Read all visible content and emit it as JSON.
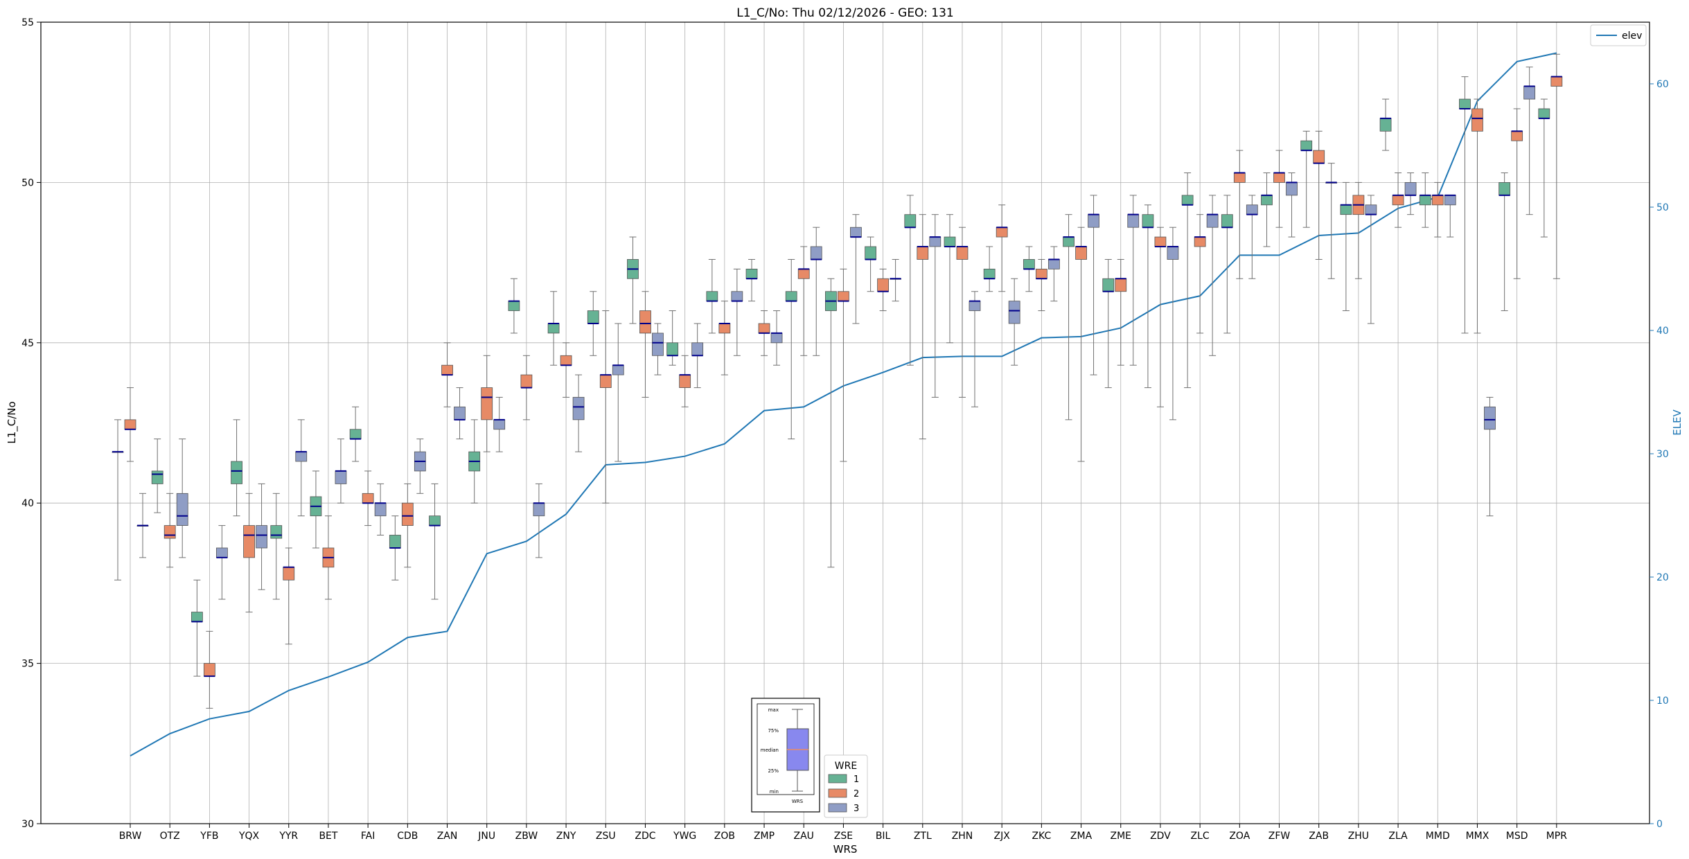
{
  "chart_data": {
    "type": "box",
    "title": "L1_C/No: Thu 02/12/2026 - GEO: 131",
    "xlabel": "WRS",
    "ylabel": "L1_C/No",
    "y2label": "ELEV",
    "ylim": [
      30,
      55
    ],
    "y2lim": [
      0,
      65
    ],
    "yticks": [
      30,
      35,
      40,
      45,
      50,
      55
    ],
    "y2ticks": [
      0,
      10,
      20,
      30,
      40,
      50,
      60
    ],
    "grid": true,
    "colors": {
      "1": "#66b294",
      "2": "#e78a66",
      "3": "#8f9dc5",
      "median": "#00008b",
      "whisker": "#707070",
      "elev": "#1f77b4",
      "key_box": "#8888ee",
      "key_median": "#e88a66"
    },
    "categories": [
      "BRW",
      "OTZ",
      "YFB",
      "YQX",
      "YYR",
      "BET",
      "FAI",
      "CDB",
      "ZAN",
      "JNU",
      "ZBW",
      "ZNY",
      "ZSU",
      "ZDC",
      "YWG",
      "ZOB",
      "ZMP",
      "ZAU",
      "ZSE",
      "BIL",
      "ZTL",
      "ZHN",
      "ZJX",
      "ZKC",
      "ZMA",
      "ZME",
      "ZDV",
      "ZLC",
      "ZOA",
      "ZFW",
      "ZAB",
      "ZHU",
      "ZLA",
      "MMD",
      "MMX",
      "MSD",
      "MPR"
    ],
    "elev": {
      "name": "elev",
      "values": [
        5.5,
        7.3,
        8.5,
        9.1,
        10.8,
        11.9,
        13.1,
        15.1,
        15.6,
        21.9,
        22.9,
        25.1,
        29.1,
        29.3,
        29.8,
        30.8,
        33.5,
        33.8,
        35.5,
        36.6,
        37.8,
        37.9,
        37.9,
        39.4,
        39.5,
        40.2,
        42.1,
        42.8,
        46.1,
        46.1,
        47.7,
        47.9,
        49.9,
        50.8,
        58.6,
        61.8,
        62.5
      ]
    },
    "series": [
      {
        "name": "1",
        "stats": [
          [
            37.6,
            41.6,
            41.6,
            41.6,
            42.6
          ],
          [
            39.7,
            40.6,
            40.9,
            41.0,
            42.0
          ],
          [
            34.6,
            36.3,
            36.3,
            36.6,
            37.6
          ],
          [
            39.6,
            40.6,
            41.0,
            41.3,
            42.6
          ],
          [
            37.0,
            38.9,
            39.0,
            39.3,
            40.3
          ],
          [
            38.6,
            39.6,
            39.9,
            40.2,
            41.0
          ],
          [
            41.3,
            42.0,
            42.0,
            42.3,
            43.0
          ],
          [
            37.6,
            38.6,
            38.6,
            39.0,
            39.6
          ],
          [
            37.0,
            39.3,
            39.3,
            39.6,
            40.6
          ],
          [
            40.0,
            41.0,
            41.3,
            41.6,
            42.6
          ],
          [
            45.3,
            46.0,
            46.3,
            46.3,
            47.0
          ],
          [
            44.3,
            45.3,
            45.6,
            45.6,
            46.6
          ],
          [
            44.6,
            45.6,
            45.6,
            46.0,
            46.6
          ],
          [
            45.6,
            47.0,
            47.3,
            47.6,
            48.3
          ],
          [
            44.3,
            44.6,
            44.6,
            45.0,
            46.0
          ],
          [
            45.3,
            46.3,
            46.3,
            46.6,
            47.6
          ],
          [
            46.3,
            47.0,
            47.0,
            47.3,
            47.6
          ],
          [
            42.0,
            46.3,
            46.3,
            46.6,
            47.6
          ],
          [
            38.0,
            46.0,
            46.3,
            46.6,
            47.0
          ],
          [
            46.6,
            47.6,
            47.6,
            48.0,
            48.3
          ],
          [
            44.3,
            48.6,
            48.6,
            49.0,
            49.6
          ],
          [
            45.0,
            48.0,
            48.0,
            48.3,
            49.0
          ],
          [
            46.6,
            47.0,
            47.0,
            47.3,
            48.0
          ],
          [
            46.6,
            47.3,
            47.3,
            47.6,
            48.0
          ],
          [
            42.6,
            48.0,
            48.3,
            48.3,
            49.0
          ],
          [
            43.6,
            46.6,
            46.6,
            47.0,
            47.6
          ],
          [
            43.6,
            48.6,
            48.6,
            49.0,
            49.3
          ],
          [
            43.6,
            49.3,
            49.3,
            49.6,
            50.3
          ],
          [
            45.3,
            48.6,
            48.6,
            49.0,
            49.6
          ],
          [
            48.0,
            49.3,
            49.6,
            49.6,
            50.3
          ],
          [
            48.6,
            51.0,
            51.0,
            51.3,
            51.6
          ],
          [
            46.0,
            49.0,
            49.3,
            49.3,
            50.0
          ],
          [
            51.0,
            51.6,
            52.0,
            52.0,
            52.6
          ],
          [
            48.6,
            49.3,
            49.6,
            49.6,
            50.3
          ],
          [
            45.3,
            52.3,
            52.3,
            52.6,
            53.3
          ],
          [
            46.0,
            49.6,
            49.6,
            50.0,
            50.3
          ],
          [
            48.3,
            52.0,
            52.0,
            52.3,
            52.6
          ]
        ]
      },
      {
        "name": "2",
        "stats": [
          [
            41.3,
            42.3,
            42.3,
            42.6,
            43.6
          ],
          [
            38.0,
            38.9,
            39.0,
            39.3,
            40.3
          ],
          [
            33.6,
            34.6,
            34.6,
            35.0,
            36.0
          ],
          [
            36.6,
            38.3,
            39.0,
            39.3,
            40.3
          ],
          [
            35.6,
            37.6,
            38.0,
            38.0,
            38.6
          ],
          [
            37.0,
            38.0,
            38.3,
            38.6,
            39.6
          ],
          [
            39.3,
            40.0,
            40.0,
            40.3,
            41.0
          ],
          [
            38.0,
            39.3,
            39.6,
            40.0,
            40.6
          ],
          [
            43.0,
            44.0,
            44.0,
            44.3,
            45.0
          ],
          [
            41.6,
            42.6,
            43.3,
            43.6,
            44.6
          ],
          [
            42.6,
            43.6,
            43.6,
            44.0,
            44.6
          ],
          [
            43.3,
            44.3,
            44.3,
            44.6,
            45.0
          ],
          [
            40.0,
            43.6,
            44.0,
            44.0,
            46.0
          ],
          [
            43.3,
            45.3,
            45.6,
            46.0,
            46.6
          ],
          [
            43.0,
            43.6,
            44.0,
            44.0,
            44.6
          ],
          [
            44.0,
            45.3,
            45.6,
            45.6,
            46.3
          ],
          [
            44.6,
            45.3,
            45.3,
            45.6,
            46.0
          ],
          [
            44.6,
            47.0,
            47.3,
            47.3,
            48.0
          ],
          [
            41.3,
            46.3,
            46.3,
            46.6,
            47.3
          ],
          [
            46.0,
            46.6,
            46.6,
            47.0,
            47.3
          ],
          [
            42.0,
            47.6,
            48.0,
            48.0,
            49.0
          ],
          [
            43.3,
            47.6,
            48.0,
            48.0,
            48.6
          ],
          [
            46.6,
            48.3,
            48.6,
            48.6,
            49.3
          ],
          [
            46.0,
            47.0,
            47.0,
            47.3,
            47.6
          ],
          [
            41.3,
            47.6,
            48.0,
            48.0,
            48.6
          ],
          [
            44.3,
            46.6,
            47.0,
            47.0,
            47.6
          ],
          [
            43.0,
            48.0,
            48.0,
            48.3,
            48.6
          ],
          [
            45.3,
            48.0,
            48.3,
            48.3,
            49.0
          ],
          [
            47.0,
            50.0,
            50.3,
            50.3,
            51.0
          ],
          [
            48.6,
            50.0,
            50.3,
            50.3,
            51.0
          ],
          [
            47.6,
            50.6,
            50.6,
            51.0,
            51.6
          ],
          [
            47.0,
            49.0,
            49.3,
            49.6,
            50.0
          ],
          [
            48.6,
            49.3,
            49.6,
            49.6,
            50.3
          ],
          [
            48.3,
            49.3,
            49.6,
            49.6,
            50.0
          ],
          [
            45.3,
            51.6,
            52.0,
            52.3,
            52.6
          ],
          [
            47.0,
            51.3,
            51.6,
            51.6,
            52.3
          ],
          [
            47.0,
            53.0,
            53.3,
            53.3,
            54.0
          ]
        ]
      },
      {
        "name": "3",
        "stats": [
          [
            38.3,
            39.3,
            39.3,
            39.3,
            40.3
          ],
          [
            38.3,
            39.3,
            39.6,
            40.3,
            42.0
          ],
          [
            37.0,
            38.3,
            38.3,
            38.6,
            39.3
          ],
          [
            37.3,
            38.6,
            39.0,
            39.3,
            40.6
          ],
          [
            39.6,
            41.3,
            41.6,
            41.6,
            42.6
          ],
          [
            40.0,
            40.6,
            41.0,
            41.0,
            42.0
          ],
          [
            39.0,
            39.6,
            40.0,
            40.0,
            40.6
          ],
          [
            40.3,
            41.0,
            41.3,
            41.6,
            42.0
          ],
          [
            42.0,
            42.6,
            42.6,
            43.0,
            43.6
          ],
          [
            41.6,
            42.3,
            42.6,
            42.6,
            43.3
          ],
          [
            38.3,
            39.6,
            40.0,
            40.0,
            40.6
          ],
          [
            41.6,
            42.6,
            43.0,
            43.3,
            44.0
          ],
          [
            41.3,
            44.0,
            44.3,
            44.3,
            45.6
          ],
          [
            44.0,
            44.6,
            45.0,
            45.3,
            45.6
          ],
          [
            43.6,
            44.6,
            44.6,
            45.0,
            45.6
          ],
          [
            44.6,
            46.3,
            46.3,
            46.6,
            47.3
          ],
          [
            44.3,
            45.0,
            45.3,
            45.3,
            46.0
          ],
          [
            44.6,
            47.6,
            47.6,
            48.0,
            48.6
          ],
          [
            45.6,
            48.3,
            48.3,
            48.6,
            49.0
          ],
          [
            46.3,
            47.0,
            47.0,
            47.0,
            47.6
          ],
          [
            43.3,
            48.0,
            48.3,
            48.3,
            49.0
          ],
          [
            43.0,
            46.0,
            46.3,
            46.3,
            46.6
          ],
          [
            44.3,
            45.6,
            46.0,
            46.3,
            47.0
          ],
          [
            46.3,
            47.3,
            47.6,
            47.6,
            48.0
          ],
          [
            44.0,
            48.6,
            49.0,
            49.0,
            49.6
          ],
          [
            44.3,
            48.6,
            49.0,
            49.0,
            49.6
          ],
          [
            42.6,
            47.6,
            48.0,
            48.0,
            48.6
          ],
          [
            44.6,
            48.6,
            49.0,
            49.0,
            49.6
          ],
          [
            47.0,
            49.0,
            49.0,
            49.3,
            49.6
          ],
          [
            48.3,
            49.6,
            50.0,
            50.0,
            50.3
          ],
          [
            47.0,
            50.0,
            50.0,
            50.0,
            50.6
          ],
          [
            45.6,
            49.0,
            49.0,
            49.3,
            49.6
          ],
          [
            49.0,
            49.6,
            49.6,
            50.0,
            50.3
          ],
          [
            48.3,
            49.3,
            49.6,
            49.6,
            49.6
          ],
          [
            39.6,
            42.3,
            42.6,
            43.0,
            43.3
          ],
          [
            49.0,
            52.6,
            53.0,
            53.0,
            53.6
          ],
          [
            null,
            null,
            null,
            null,
            null
          ]
        ]
      }
    ],
    "legend_title": "WRE",
    "legend_entries": [
      "1",
      "2",
      "3"
    ],
    "legend_loc": "lower-center",
    "elev_legend": "elev",
    "elev_legend_loc": "top-right",
    "key_labels": [
      "max",
      "75%",
      "median",
      "25%",
      "min",
      "WRS"
    ]
  }
}
